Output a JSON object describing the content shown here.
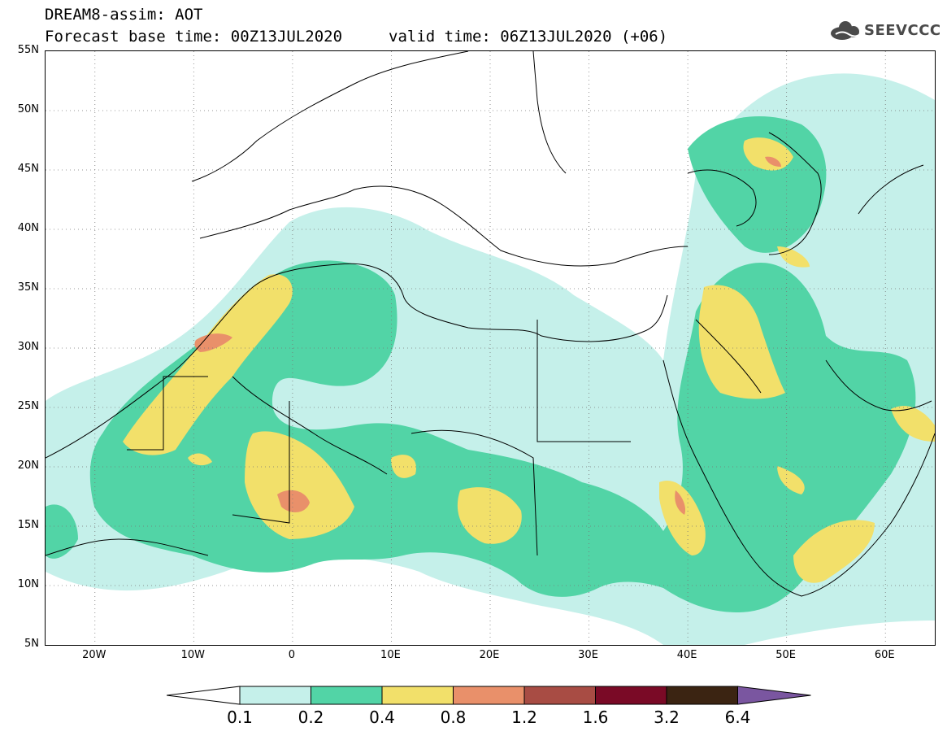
{
  "header": {
    "title": "DREAM8-assim: AOT",
    "base_time": "Forecast base time: 00Z13JUL2020",
    "valid_time": "valid time: 06Z13JUL2020 (+06)"
  },
  "logo": {
    "text": "SEEVCCC",
    "icon": "cloud-logo-icon"
  },
  "map": {
    "lat_labels": [
      "55N",
      "50N",
      "45N",
      "40N",
      "35N",
      "30N",
      "25N",
      "20N",
      "15N",
      "10N",
      "5N"
    ],
    "lon_labels": [
      "20W",
      "10W",
      "0",
      "10E",
      "20E",
      "30E",
      "40E",
      "50E",
      "60E"
    ],
    "lat_range": [
      5,
      55
    ],
    "lon_range": [
      -25,
      65
    ],
    "grid": "dotted"
  },
  "colorbar": {
    "levels": [
      "0.1",
      "0.2",
      "0.4",
      "0.8",
      "1.2",
      "1.6",
      "3.2",
      "6.4"
    ],
    "colors": [
      "#ffffff",
      "#c5f0ea",
      "#52d4a6",
      "#f2e06a",
      "#e9906a",
      "#a84c44",
      "#7a0a26",
      "#3b2412",
      "#7a56a0"
    ]
  }
}
